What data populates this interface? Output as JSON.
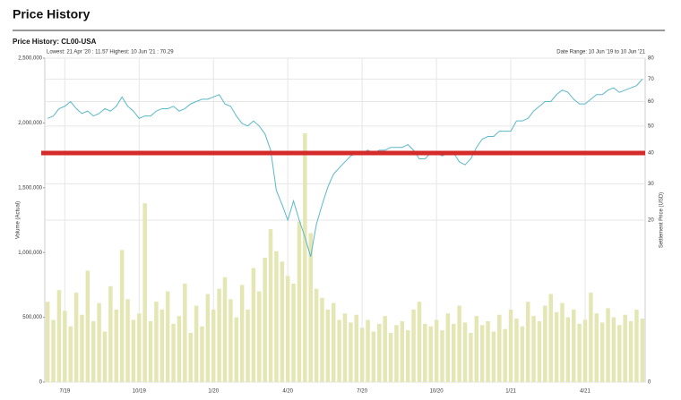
{
  "header": {
    "title": "Price History"
  },
  "chart_data": {
    "type": "combo",
    "title": "Price History: CL00-USA",
    "stats": "Lowest: 21 Apr '20 : 11.57  Highest: 10 Jun '21 : 70.29",
    "date_range": "Date Range: 10 Jun '19 to 10 Jun '21",
    "ylabel": "Volume (Actual)",
    "y2label": "Settlement Price (USD)",
    "categories": [
      null,
      null,
      null,
      "7/19",
      null,
      null,
      null,
      null,
      null,
      null,
      null,
      null,
      null,
      null,
      null,
      null,
      "10/19",
      null,
      null,
      null,
      null,
      null,
      null,
      null,
      null,
      null,
      null,
      null,
      null,
      "1/20",
      null,
      null,
      null,
      null,
      null,
      null,
      null,
      null,
      null,
      null,
      null,
      null,
      "4/20",
      null,
      null,
      null,
      null,
      null,
      null,
      null,
      null,
      null,
      null,
      null,
      null,
      "7/20",
      null,
      null,
      null,
      null,
      null,
      null,
      null,
      null,
      null,
      null,
      null,
      null,
      "10/20",
      null,
      null,
      null,
      null,
      null,
      null,
      null,
      null,
      null,
      null,
      null,
      null,
      "1/21",
      null,
      null,
      null,
      null,
      null,
      null,
      null,
      null,
      null,
      null,
      null,
      null,
      "4/21",
      null,
      null,
      null,
      null,
      null,
      null,
      null,
      null,
      null,
      null
    ],
    "series": [
      {
        "type": "bar",
        "color": "#e4e6b4",
        "values": [
          620000,
          480000,
          710000,
          550000,
          430000,
          690000,
          520000,
          860000,
          470000,
          610000,
          390000,
          740000,
          560000,
          1020000,
          640000,
          480000,
          530000,
          1380000,
          470000,
          620000,
          560000,
          700000,
          450000,
          510000,
          760000,
          380000,
          590000,
          430000,
          680000,
          560000,
          720000,
          810000,
          640000,
          500000,
          750000,
          560000,
          880000,
          700000,
          960000,
          1180000,
          1010000,
          930000,
          820000,
          760000,
          1240000,
          1920000,
          1150000,
          720000,
          650000,
          560000,
          610000,
          480000,
          530000,
          460000,
          520000,
          420000,
          480000,
          390000,
          450000,
          510000,
          380000,
          440000,
          470000,
          400000,
          560000,
          620000,
          450000,
          430000,
          480000,
          400000,
          530000,
          450000,
          590000,
          460000,
          380000,
          510000,
          440000,
          470000,
          390000,
          520000,
          410000,
          560000,
          490000,
          430000,
          620000,
          510000,
          470000,
          590000,
          680000,
          540000,
          610000,
          500000,
          560000,
          450000,
          480000,
          690000,
          530000,
          460000,
          570000,
          500000,
          440000,
          520000,
          470000,
          560000,
          490000
        ]
      },
      {
        "type": "line",
        "axis": "y2",
        "color": "#5bb8c9",
        "values": [
          53,
          54,
          57,
          58,
          60,
          57,
          55,
          56,
          54,
          55,
          57,
          56,
          58,
          62,
          58,
          56,
          53,
          54,
          54,
          56,
          57,
          57,
          58,
          56,
          57,
          59,
          60,
          61,
          61,
          62,
          63,
          59,
          58,
          54,
          51,
          50,
          52,
          50,
          47,
          41,
          28,
          24,
          20,
          25,
          20,
          16,
          12,
          19,
          24,
          29,
          33,
          35,
          37,
          39,
          40,
          40,
          41,
          40,
          41,
          41,
          42,
          42,
          42,
          43,
          41,
          38,
          38,
          40,
          40,
          39,
          40,
          40,
          37,
          36,
          38,
          42,
          45,
          46,
          46,
          48,
          48,
          48,
          52,
          52,
          53,
          56,
          58,
          60,
          60,
          63,
          65,
          64,
          61,
          59,
          59,
          61,
          63,
          63,
          65,
          66,
          64,
          65,
          66,
          67,
          70
        ]
      }
    ],
    "ylim": [
      0,
      2500000
    ],
    "yticks": [
      0,
      {
        "value": 500000,
        "label": "500,000"
      },
      {
        "value": 1000000,
        "label": "1,000,000"
      },
      {
        "value": 1500000,
        "label": "1,500,000"
      },
      {
        "value": 2000000,
        "label": "2,000,000"
      },
      {
        "value": 2500000,
        "label": "2,500,000"
      }
    ],
    "y2lim": [
      0,
      80
    ],
    "y2scale": "sqrt",
    "y2ticks": [
      0,
      20,
      30,
      40,
      50,
      60,
      70,
      80
    ],
    "grid": true,
    "reference_line": {
      "axis": "y2",
      "value": 40,
      "color": "#d42a2a"
    }
  }
}
